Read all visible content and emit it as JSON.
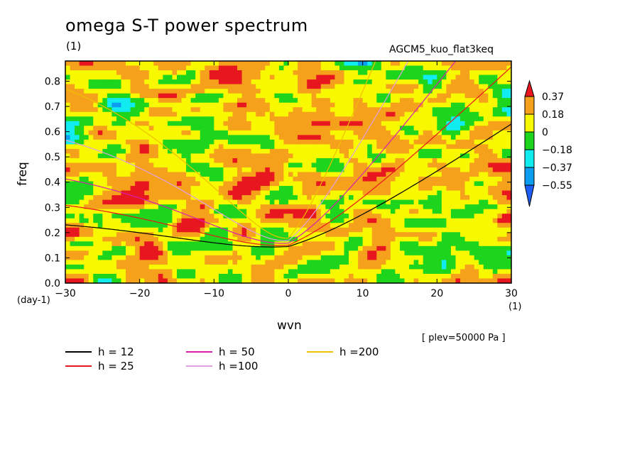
{
  "chart_data": {
    "type": "heatmap",
    "title": "omega S-T power spectrum",
    "units_label": "(1)",
    "run_label": "AGCM5_kuo_flat3keq",
    "xlabel": "wvn",
    "ylabel": "freq",
    "x_units": "(1)",
    "y_units": "(day-1)",
    "level_label": "[ plev=50000 Pa ]",
    "xlim": [
      -30,
      30
    ],
    "ylim": [
      0,
      0.88
    ],
    "xticks": [
      -30,
      -20,
      -10,
      0,
      10,
      20,
      30
    ],
    "xtick_labels": [
      "−30",
      "−20",
      "−10",
      "0",
      "10",
      "20",
      "30"
    ],
    "yticks": [
      0,
      0.1,
      0.2,
      0.3,
      0.4,
      0.5,
      0.6,
      0.7,
      0.8
    ],
    "ytick_labels": [
      "0.0",
      "0.1",
      "0.2",
      "0.3",
      "0.4",
      "0.5",
      "0.6",
      "0.7",
      "0.8"
    ],
    "colorbar": {
      "labels": [
        "0.37",
        "0.18",
        "0",
        "−0.18",
        "−0.37",
        "−0.55"
      ],
      "colors": [
        "#e8161e",
        "#f6a11c",
        "#f8f800",
        "#1dd51d",
        "#10ecf0",
        "#0b9df0",
        "#1f5ef5"
      ]
    },
    "dispersion_curves": [
      {
        "name": "h = 12",
        "h": 12,
        "color": "#000000"
      },
      {
        "name": "h = 25",
        "h": 25,
        "color": "#e8161e"
      },
      {
        "name": "h = 50",
        "h": 50,
        "color": "#d81fb0"
      },
      {
        "name": "h =100",
        "h": 100,
        "color": "#e0a0e0"
      },
      {
        "name": "h =200",
        "h": 200,
        "color": "#f0c000"
      }
    ]
  }
}
